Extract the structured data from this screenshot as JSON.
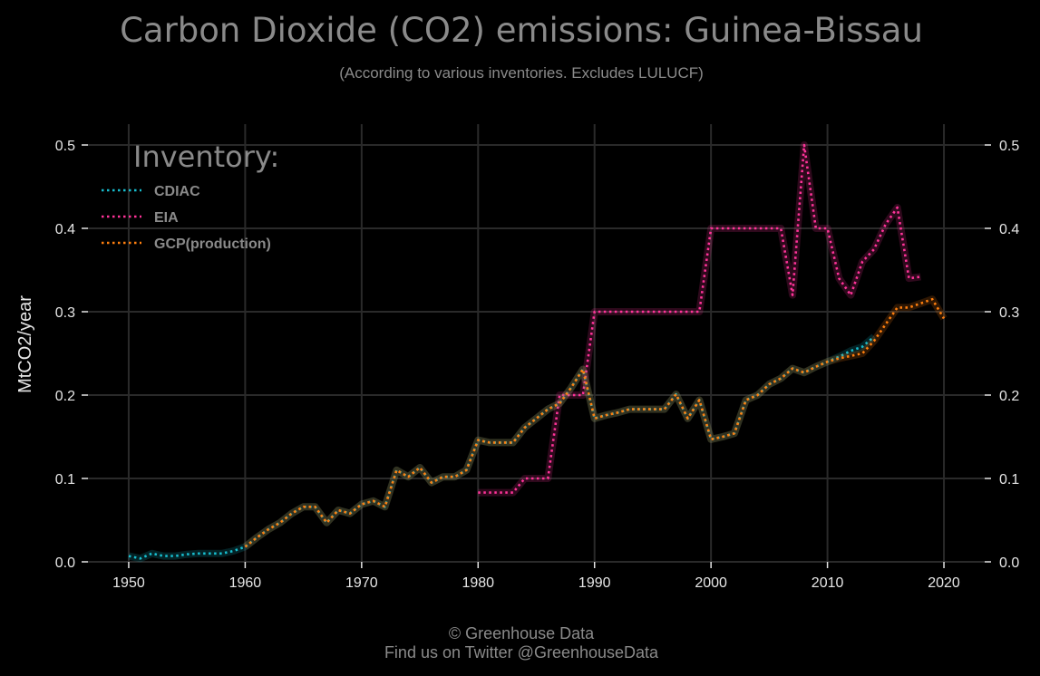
{
  "chart_data": {
    "type": "line",
    "title": "Carbon Dioxide (CO2) emissions: Guinea-Bissau",
    "subtitle": "(According to various inventories. Excludes LULUCF)",
    "ylabel": "MtCO2/year",
    "xlabel": "",
    "xlim": [
      1946.5,
      2023.5
    ],
    "ylim": [
      0,
      0.5
    ],
    "x_ticks": [
      1950,
      1960,
      1970,
      1980,
      1990,
      2000,
      2010,
      2020
    ],
    "y_ticks": [
      0.0,
      0.1,
      0.2,
      0.3,
      0.4,
      0.5
    ],
    "y_tick_labels": [
      "0.0",
      "0.1",
      "0.2",
      "0.3",
      "0.4",
      "0.5"
    ],
    "grid": true,
    "legend": {
      "title": "Inventory:",
      "placement": "top-left"
    },
    "series": [
      {
        "name": "CDIAC",
        "color": "#17becf",
        "x": [
          1950,
          1951,
          1952,
          1953,
          1954,
          1955,
          1956,
          1957,
          1958,
          1959,
          1960,
          1961,
          1962,
          1963,
          1964,
          1965,
          1966,
          1967,
          1968,
          1969,
          1970,
          1971,
          1972,
          1973,
          1974,
          1975,
          1976,
          1977,
          1978,
          1979,
          1980,
          1981,
          1982,
          1983,
          1984,
          1985,
          1986,
          1987,
          1988,
          1989,
          1990,
          1991,
          1992,
          1993,
          1994,
          1995,
          1996,
          1997,
          1998,
          1999,
          2000,
          2001,
          2002,
          2003,
          2004,
          2005,
          2006,
          2007,
          2008,
          2009,
          2010,
          2011,
          2012,
          2013,
          2014
        ],
        "y": [
          0.007,
          0.004,
          0.01,
          0.007,
          0.007,
          0.009,
          0.01,
          0.01,
          0.01,
          0.013,
          0.018,
          0.029,
          0.039,
          0.047,
          0.058,
          0.066,
          0.066,
          0.047,
          0.062,
          0.058,
          0.069,
          0.073,
          0.066,
          0.11,
          0.102,
          0.113,
          0.095,
          0.102,
          0.102,
          0.11,
          0.146,
          0.143,
          0.143,
          0.143,
          0.161,
          0.172,
          0.183,
          0.19,
          0.209,
          0.231,
          0.172,
          0.176,
          0.179,
          0.183,
          0.183,
          0.183,
          0.183,
          0.201,
          0.172,
          0.194,
          0.147,
          0.15,
          0.154,
          0.194,
          0.2,
          0.213,
          0.22,
          0.232,
          0.227,
          0.234,
          0.24,
          0.246,
          0.253,
          0.258,
          0.27
        ]
      },
      {
        "name": "EIA",
        "color": "#ff3399",
        "x": [
          1980,
          1981,
          1982,
          1983,
          1984,
          1985,
          1986,
          1987,
          1988,
          1989,
          1990,
          1991,
          1992,
          1993,
          1994,
          1995,
          1996,
          1997,
          1998,
          1999,
          2000,
          2001,
          2002,
          2003,
          2004,
          2005,
          2006,
          2007,
          2008,
          2009,
          2010,
          2011,
          2012,
          2013,
          2014,
          2015,
          2016,
          2017,
          2018
        ],
        "y": [
          0.083,
          0.083,
          0.083,
          0.083,
          0.1,
          0.1,
          0.1,
          0.2,
          0.2,
          0.2,
          0.3,
          0.3,
          0.3,
          0.3,
          0.3,
          0.3,
          0.3,
          0.3,
          0.3,
          0.3,
          0.4,
          0.4,
          0.4,
          0.4,
          0.4,
          0.4,
          0.4,
          0.32,
          0.5,
          0.4,
          0.4,
          0.34,
          0.32,
          0.36,
          0.375,
          0.405,
          0.425,
          0.34,
          0.342
        ]
      },
      {
        "name": "GCP(production)",
        "color": "#ff7f0e",
        "x": [
          1960,
          1961,
          1962,
          1963,
          1964,
          1965,
          1966,
          1967,
          1968,
          1969,
          1970,
          1971,
          1972,
          1973,
          1974,
          1975,
          1976,
          1977,
          1978,
          1979,
          1980,
          1981,
          1982,
          1983,
          1984,
          1985,
          1986,
          1987,
          1988,
          1989,
          1990,
          1991,
          1992,
          1993,
          1994,
          1995,
          1996,
          1997,
          1998,
          1999,
          2000,
          2001,
          2002,
          2003,
          2004,
          2005,
          2006,
          2007,
          2008,
          2009,
          2010,
          2011,
          2012,
          2013,
          2014,
          2015,
          2016,
          2017,
          2018,
          2019,
          2020
        ],
        "y": [
          0.018,
          0.029,
          0.039,
          0.047,
          0.058,
          0.066,
          0.066,
          0.047,
          0.062,
          0.058,
          0.069,
          0.073,
          0.066,
          0.11,
          0.102,
          0.113,
          0.095,
          0.102,
          0.102,
          0.11,
          0.146,
          0.143,
          0.143,
          0.143,
          0.161,
          0.172,
          0.183,
          0.19,
          0.209,
          0.231,
          0.172,
          0.176,
          0.179,
          0.183,
          0.183,
          0.183,
          0.183,
          0.201,
          0.172,
          0.194,
          0.147,
          0.15,
          0.154,
          0.194,
          0.2,
          0.213,
          0.22,
          0.232,
          0.227,
          0.234,
          0.24,
          0.244,
          0.247,
          0.25,
          0.265,
          0.285,
          0.305,
          0.305,
          0.31,
          0.315,
          0.292
        ]
      }
    ]
  },
  "footer": {
    "line1": "© Greenhouse Data",
    "line2": "Find us on Twitter @GreenhouseData"
  },
  "colors": {
    "background": "#000000",
    "grid": "#2a2a2a",
    "text_muted": "#8a8a8a",
    "tick_text": "#e6e6e6"
  }
}
